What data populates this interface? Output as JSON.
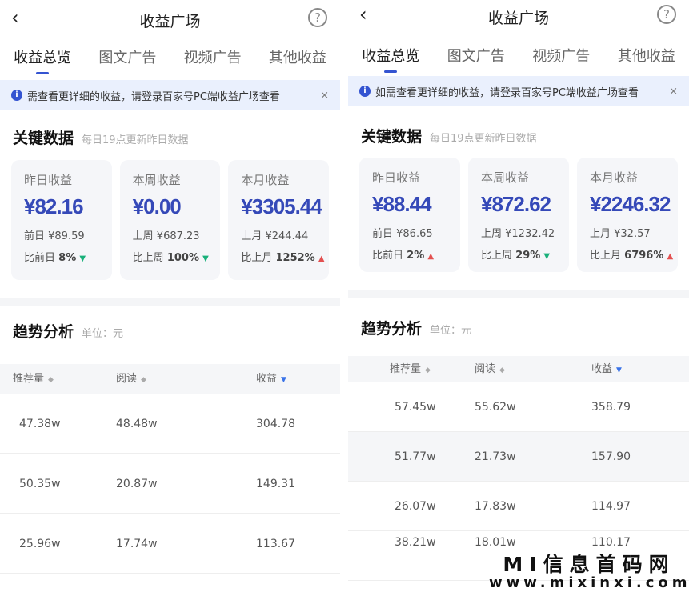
{
  "panels": [
    {
      "header": {
        "title": "收益广场",
        "back": "‹",
        "help": "?"
      },
      "tabs": [
        "收益总览",
        "图文广告",
        "视频广告",
        "其他收益"
      ],
      "banner": {
        "text": "需查看更详细的收益，请登录百家号PC端收益广场查看",
        "close": "×"
      },
      "key_data": {
        "title": "关键数据",
        "subtitle": "每日19点更新昨日数据"
      },
      "cards": [
        {
          "label": "昨日收益",
          "value": "¥82.16",
          "prev": "前日 ¥89.59",
          "cmp_label": "比前日",
          "cmp": "8%",
          "trend": "down"
        },
        {
          "label": "本周收益",
          "value": "¥0.00",
          "prev": "上周 ¥687.23",
          "cmp_label": "比上周",
          "cmp": "100%",
          "trend": "down"
        },
        {
          "label": "本月收益",
          "value": "¥3305.44",
          "prev": "上月 ¥244.44",
          "cmp_label": "比上月",
          "cmp": "1252%",
          "trend": "up"
        }
      ],
      "trend": {
        "title": "趋势分析",
        "unit": "单位：元"
      },
      "columns": [
        "推荐量",
        "阅读",
        "收益"
      ],
      "rows": [
        [
          "47.38w",
          "48.48w",
          "304.78"
        ],
        [
          "50.35w",
          "20.87w",
          "149.31"
        ],
        [
          "25.96w",
          "17.74w",
          "113.67"
        ]
      ]
    },
    {
      "header": {
        "title": "收益广场",
        "back": "‹",
        "help": "?"
      },
      "tabs": [
        "收益总览",
        "图文广告",
        "视频广告",
        "其他收益"
      ],
      "banner": {
        "text": "如需查看更详细的收益，请登录百家号PC端收益广场查看",
        "close": "×"
      },
      "key_data": {
        "title": "关键数据",
        "subtitle": "每日19点更新昨日数据"
      },
      "cards": [
        {
          "label": "昨日收益",
          "value": "¥88.44",
          "prev": "前日 ¥86.65",
          "cmp_label": "比前日",
          "cmp": "2%",
          "trend": "up"
        },
        {
          "label": "本周收益",
          "value": "¥872.62",
          "prev": "上周 ¥1232.42",
          "cmp_label": "比上周",
          "cmp": "29%",
          "trend": "down"
        },
        {
          "label": "本月收益",
          "value": "¥2246.32",
          "prev": "上月 ¥32.57",
          "cmp_label": "比上月",
          "cmp": "6796%",
          "trend": "up"
        }
      ],
      "trend": {
        "title": "趋势分析",
        "unit": "单位：元"
      },
      "columns": [
        "推荐量",
        "阅读",
        "收益"
      ],
      "rows": [
        [
          "57.45w",
          "55.62w",
          "358.79"
        ],
        [
          "51.77w",
          "21.73w",
          "157.90"
        ],
        [
          "26.07w",
          "17.83w",
          "114.97"
        ],
        [
          "38.21w",
          "18.01w",
          "110.17"
        ]
      ]
    }
  ],
  "watermark": {
    "line1": "MI信息首码网",
    "line2": "www.mixinxi.com"
  },
  "colors": {
    "accent": "#3549b8",
    "up": "#e35050",
    "down": "#18b07a",
    "banner": "#eaf0fd"
  }
}
